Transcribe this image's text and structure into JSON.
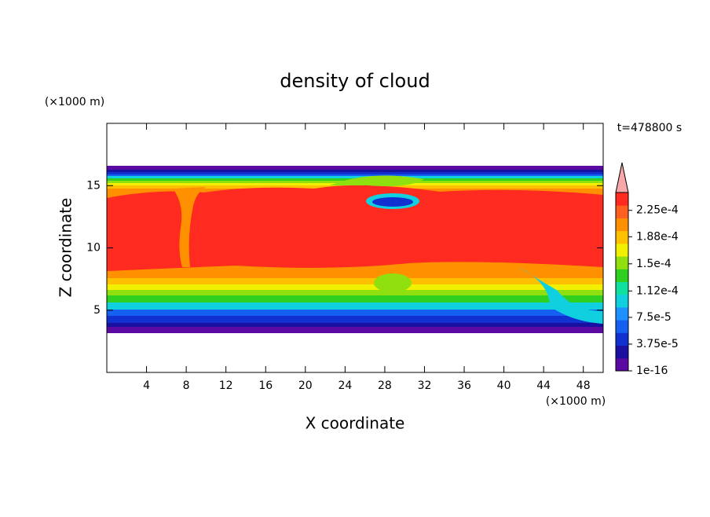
{
  "chart_data": {
    "type": "contour",
    "title": "density of cloud",
    "x_label": "X coordinate",
    "y_label": "Z coordinate",
    "x_unit": "(×1000 m)",
    "y_unit": "(×1000 m)",
    "annotation": "t=478800 s",
    "xlim": [
      0,
      50
    ],
    "xticks": [
      4,
      8,
      12,
      16,
      20,
      24,
      28,
      32,
      36,
      40,
      44,
      48
    ],
    "ylim": [
      0,
      20
    ],
    "yticks": [
      5,
      10,
      15
    ],
    "colorbar": {
      "lim": [
        1e-16,
        0.00025
      ],
      "ticks": [
        1e-16,
        {
          "value": 3.75e-05,
          "label": "3.75e-5"
        },
        {
          "value": 7.5e-05,
          "label": "7.5e-5"
        },
        {
          "value": 0.000112,
          "label": "1.12e-4"
        },
        {
          "value": 0.00015,
          "label": "1.5e-4"
        },
        {
          "value": 0.000188,
          "label": "1.88e-4"
        },
        {
          "value": 0.000225,
          "label": "2.25e-4"
        }
      ],
      "colors": [
        "#5a0aa0",
        "#1a10a0",
        "#1030d0",
        "#1560f0",
        "#1e90ff",
        "#10d0e0",
        "#10e0a0",
        "#30d020",
        "#90e010",
        "#f0f000",
        "#ffc000",
        "#ff9000",
        "#ff6020",
        "#ff2a20"
      ],
      "extend_color": "#f8a8a8"
    }
  }
}
